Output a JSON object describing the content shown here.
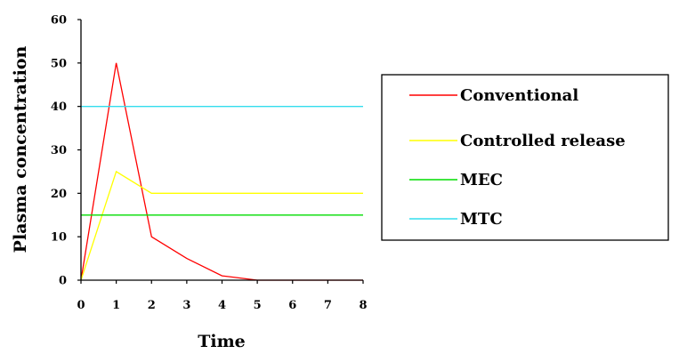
{
  "chart_data": {
    "type": "line",
    "xlabel": "Time",
    "ylabel": "Plasma concentration",
    "xlim": [
      0,
      8
    ],
    "ylim": [
      0,
      60
    ],
    "x_ticks": [
      0,
      1,
      2,
      3,
      4,
      5,
      6,
      7,
      8
    ],
    "y_ticks": [
      0,
      10,
      20,
      30,
      40,
      50,
      60
    ],
    "grid": false,
    "legend_position": "right",
    "series": [
      {
        "name": "Conventional",
        "color": "#ff0000",
        "x": [
          0,
          1,
          2,
          3,
          4,
          5,
          6,
          7,
          8
        ],
        "y": [
          0,
          50,
          10,
          5,
          1,
          0,
          0,
          0,
          0
        ]
      },
      {
        "name": "Controlled release",
        "color": "#ffff00",
        "x": [
          0,
          1,
          2,
          3,
          4,
          5,
          6,
          7,
          8
        ],
        "y": [
          0,
          25,
          20,
          20,
          20,
          20,
          20,
          20,
          20
        ]
      },
      {
        "name": "MEC",
        "color": "#00dd00",
        "x": [
          0,
          8
        ],
        "y": [
          15,
          15
        ]
      },
      {
        "name": "MTC",
        "color": "#33ddee",
        "x": [
          0,
          8
        ],
        "y": [
          40,
          40
        ]
      }
    ]
  }
}
